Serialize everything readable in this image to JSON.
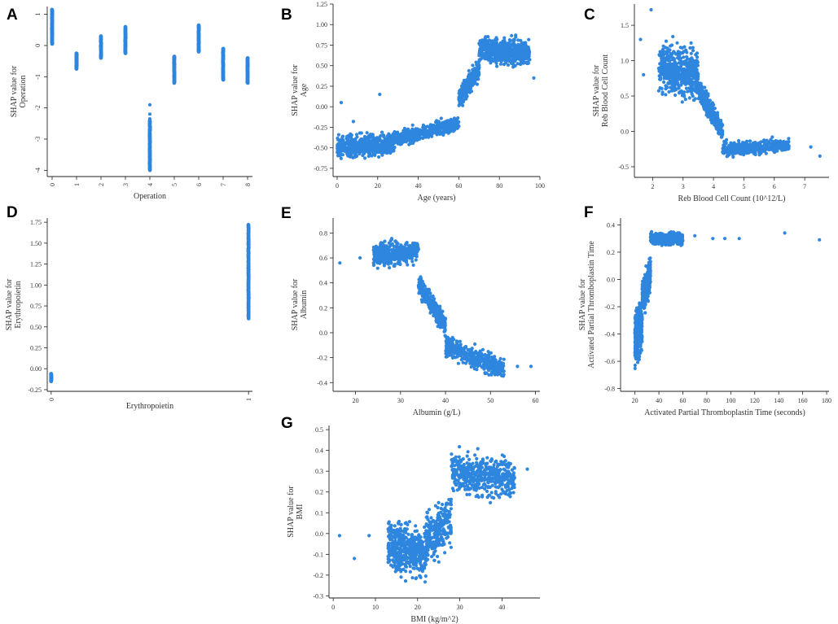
{
  "point_color": "#2e86de",
  "chart_data": [
    {
      "panel": "A",
      "type": "scatter",
      "xlabel": "Operation",
      "ylabel": [
        "SHAP value for",
        "Operation"
      ],
      "xlim": [
        -0.2,
        8.2
      ],
      "ylim": [
        -4.2,
        1.25
      ],
      "xticks": [
        0,
        1,
        2,
        3,
        4,
        5,
        6,
        7,
        8
      ],
      "yticks": [
        -4,
        -3,
        -2,
        -1,
        0,
        1
      ],
      "x_tick_rotate": true,
      "clusters": [
        {
          "kind": "column",
          "x": 0,
          "y_range": [
            0.05,
            1.15
          ],
          "n": 90
        },
        {
          "kind": "column",
          "x": 1,
          "y_range": [
            -0.75,
            -0.25
          ],
          "n": 50
        },
        {
          "kind": "column",
          "x": 2,
          "y_range": [
            -0.4,
            0.3
          ],
          "n": 50
        },
        {
          "kind": "column",
          "x": 3,
          "y_range": [
            -0.25,
            0.6
          ],
          "n": 60
        },
        {
          "kind": "column",
          "x": 4,
          "y_range": [
            -4.0,
            -2.4
          ],
          "n": 90
        },
        {
          "kind": "column",
          "x": 5,
          "y_range": [
            -1.2,
            -0.35
          ],
          "n": 60
        },
        {
          "kind": "column",
          "x": 6,
          "y_range": [
            -0.2,
            0.65
          ],
          "n": 60
        },
        {
          "kind": "column",
          "x": 7,
          "y_range": [
            -1.1,
            -0.1
          ],
          "n": 70
        },
        {
          "kind": "column",
          "x": 8,
          "y_range": [
            -1.2,
            -0.4
          ],
          "n": 60
        }
      ],
      "points": [
        [
          4,
          -1.9
        ],
        [
          4,
          -2.2
        ],
        [
          4,
          -2.35
        ]
      ]
    },
    {
      "panel": "B",
      "type": "scatter",
      "xlabel": "Age (years)",
      "ylabel": [
        "SHAP value for",
        "Age"
      ],
      "xlim": [
        -2,
        100
      ],
      "ylim": [
        -0.85,
        1.25
      ],
      "xticks": [
        0,
        20,
        40,
        60,
        80,
        100
      ],
      "yticks": [
        -0.75,
        -0.5,
        -0.25,
        0.0,
        0.25,
        0.5,
        0.75,
        1.0,
        1.25
      ],
      "ytick_labels": [
        "-0.75",
        "-0.50",
        "-0.25",
        "0.00",
        "0.25",
        "0.50",
        "0.75",
        "1.00",
        "1.25"
      ],
      "clusters": [
        {
          "kind": "band",
          "x_range": [
            0,
            28
          ],
          "y_center": [
            -0.5,
            -0.45
          ],
          "spread": 0.22,
          "n": 500
        },
        {
          "kind": "band",
          "x_range": [
            28,
            60
          ],
          "y_center": [
            -0.4,
            -0.2
          ],
          "spread": 0.14,
          "n": 500
        },
        {
          "kind": "band",
          "x_range": [
            60,
            70
          ],
          "y_center": [
            0.1,
            0.45
          ],
          "spread": 0.2,
          "n": 260
        },
        {
          "kind": "band",
          "x_range": [
            70,
            95
          ],
          "y_center": [
            0.7,
            0.65
          ],
          "spread": 0.25,
          "n": 600
        }
      ],
      "points": [
        [
          2,
          0.05
        ],
        [
          21,
          0.15
        ],
        [
          97,
          0.35
        ],
        [
          8,
          -0.18
        ]
      ]
    },
    {
      "panel": "C",
      "type": "scatter",
      "xlabel": "Reb Blood Cell Count (10^12/L)",
      "ylabel": [
        "SHAP value for",
        "Reb Blood Cell Count"
      ],
      "xlim": [
        1.4,
        7.8
      ],
      "ylim": [
        -0.65,
        1.8
      ],
      "xticks": [
        2,
        3,
        4,
        5,
        6,
        7
      ],
      "yticks": [
        -0.5,
        0.0,
        0.5,
        1.0,
        1.5
      ],
      "ytick_labels": [
        "-0.5",
        "0.0",
        "0.5",
        "1.0",
        "1.5"
      ],
      "clusters": [
        {
          "kind": "band",
          "x_range": [
            2.2,
            3.5
          ],
          "y_center": [
            0.9,
            0.8
          ],
          "spread": 0.55,
          "n": 550
        },
        {
          "kind": "band",
          "x_range": [
            3.5,
            4.3
          ],
          "y_center": [
            0.6,
            0.0
          ],
          "spread": 0.25,
          "n": 350
        },
        {
          "kind": "band",
          "x_range": [
            4.3,
            6.5
          ],
          "y_center": [
            -0.25,
            -0.2
          ],
          "spread": 0.15,
          "n": 450
        }
      ],
      "points": [
        [
          1.6,
          1.3
        ],
        [
          1.95,
          1.72
        ],
        [
          7.5,
          -0.35
        ],
        [
          7.2,
          -0.22
        ],
        [
          1.7,
          0.8
        ]
      ]
    },
    {
      "panel": "D",
      "type": "scatter",
      "xlabel": "Erythropoietin",
      "ylabel": [
        "SHAP value for",
        "Erythropoietin"
      ],
      "xlim": [
        -0.02,
        1.02
      ],
      "ylim": [
        -0.27,
        1.8
      ],
      "xticks": [
        0,
        1
      ],
      "yticks": [
        -0.25,
        0.0,
        0.25,
        0.5,
        0.75,
        1.0,
        1.25,
        1.5,
        1.75
      ],
      "ytick_labels": [
        "-0.25",
        "0.00",
        "0.25",
        "0.50",
        "0.75",
        "1.00",
        "1.25",
        "1.50",
        "1.75"
      ],
      "x_tick_rotate": true,
      "clusters": [
        {
          "kind": "column",
          "x": 0,
          "y_range": [
            -0.15,
            -0.06
          ],
          "n": 40
        },
        {
          "kind": "column",
          "x": 1,
          "y_range": [
            0.6,
            1.72
          ],
          "n": 150
        }
      ],
      "points": []
    },
    {
      "panel": "E",
      "type": "scatter",
      "xlabel": "Albumin (g/L)",
      "ylabel": [
        "SHAP value for",
        "Albumin"
      ],
      "xlim": [
        15,
        61
      ],
      "ylim": [
        -0.47,
        0.92
      ],
      "xticks": [
        20,
        30,
        40,
        50,
        60
      ],
      "yticks": [
        -0.4,
        -0.2,
        0.0,
        0.2,
        0.4,
        0.6,
        0.8
      ],
      "ytick_labels": [
        "-0.4",
        "-0.2",
        "0.0",
        "0.2",
        "0.4",
        "0.6",
        "0.8"
      ],
      "clusters": [
        {
          "kind": "band",
          "x_range": [
            24,
            34
          ],
          "y_center": [
            0.62,
            0.65
          ],
          "spread": 0.15,
          "n": 450
        },
        {
          "kind": "band",
          "x_range": [
            34,
            40
          ],
          "y_center": [
            0.4,
            0.05
          ],
          "spread": 0.14,
          "n": 320
        },
        {
          "kind": "band",
          "x_range": [
            40,
            53
          ],
          "y_center": [
            -0.1,
            -0.3
          ],
          "spread": 0.14,
          "n": 450
        }
      ],
      "points": [
        [
          16.5,
          0.56
        ],
        [
          59,
          -0.27
        ],
        [
          21,
          0.6
        ],
        [
          56,
          -0.27
        ]
      ]
    },
    {
      "panel": "F",
      "type": "scatter",
      "xlabel": "Activated Partial Thromboplastin Time (seconds)",
      "ylabel": [
        "SHAP value for",
        "Activated Partial Thromboplastin Time"
      ],
      "xlim": [
        8,
        182
      ],
      "ylim": [
        -0.82,
        0.45
      ],
      "xticks": [
        20,
        40,
        60,
        80,
        100,
        120,
        140,
        160,
        180
      ],
      "yticks": [
        -0.8,
        -0.6,
        -0.4,
        -0.2,
        0.0,
        0.2,
        0.4
      ],
      "ytick_labels": [
        "-0.8",
        "-0.6",
        "-0.4",
        "-0.2",
        "0.0",
        "0.2",
        "0.4"
      ],
      "clusters": [
        {
          "kind": "band",
          "x_range": [
            20,
            26
          ],
          "y_center": [
            -0.45,
            -0.3
          ],
          "spread": 0.3,
          "n": 450
        },
        {
          "kind": "band",
          "x_range": [
            26,
            33
          ],
          "y_center": [
            -0.15,
            0.05
          ],
          "spread": 0.2,
          "n": 250
        },
        {
          "kind": "band",
          "x_range": [
            33,
            60
          ],
          "y_center": [
            0.3,
            0.3
          ],
          "spread": 0.08,
          "n": 380
        }
      ],
      "points": [
        [
          85,
          0.3
        ],
        [
          95,
          0.3
        ],
        [
          107,
          0.3
        ],
        [
          145,
          0.34
        ],
        [
          174,
          0.29
        ],
        [
          70,
          0.32
        ]
      ]
    },
    {
      "panel": "G",
      "type": "scatter",
      "xlabel": "BMI (kg/m^2)",
      "ylabel": [
        "SHAP value for",
        "BMI"
      ],
      "xlim": [
        -1,
        49
      ],
      "ylim": [
        -0.31,
        0.52
      ],
      "xticks": [
        0,
        10,
        20,
        30,
        40
      ],
      "yticks": [
        -0.3,
        -0.2,
        -0.1,
        0.0,
        0.1,
        0.2,
        0.3,
        0.4,
        0.5
      ],
      "ytick_labels": [
        "-0.3",
        "-0.2",
        "-0.1",
        "0.0",
        "0.1",
        "0.2",
        "0.3",
        "0.4",
        "0.5"
      ],
      "clusters": [
        {
          "kind": "band",
          "x_range": [
            13,
            22
          ],
          "y_center": [
            -0.05,
            -0.1
          ],
          "spread": 0.2,
          "n": 480
        },
        {
          "kind": "band",
          "x_range": [
            22,
            28
          ],
          "y_center": [
            -0.02,
            0.05
          ],
          "spread": 0.2,
          "n": 250
        },
        {
          "kind": "band",
          "x_range": [
            28,
            43
          ],
          "y_center": [
            0.3,
            0.26
          ],
          "spread": 0.16,
          "n": 480
        }
      ],
      "points": [
        [
          1.5,
          -0.01
        ],
        [
          5,
          -0.12
        ],
        [
          8.5,
          -0.01
        ],
        [
          46,
          0.31
        ]
      ]
    }
  ]
}
